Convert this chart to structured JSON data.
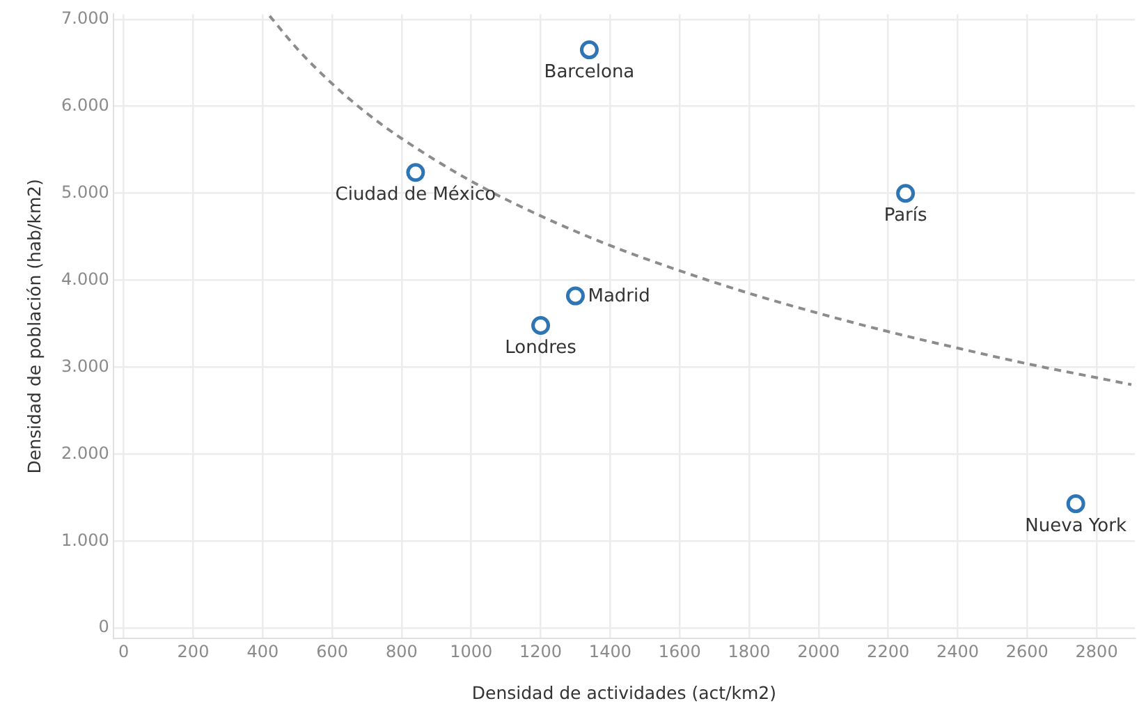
{
  "chart_data": {
    "type": "scatter",
    "xlabel": "Densidad de actividades (act/km2)",
    "ylabel": "Densidad de población (hab/km2)",
    "xlim": [
      -30,
      2910
    ],
    "xticks": [
      0,
      200,
      400,
      600,
      800,
      1000,
      1200,
      1400,
      1600,
      1800,
      2000,
      2200,
      2400,
      2600,
      2800
    ],
    "ylim": [
      -120,
      7060
    ],
    "yticks": [
      {
        "value": 0,
        "label": "0"
      },
      {
        "value": 1000,
        "label": "1.000"
      },
      {
        "value": 2000,
        "label": "2.000"
      },
      {
        "value": 3000,
        "label": "3.000"
      },
      {
        "value": 4000,
        "label": "4.000"
      },
      {
        "value": 5000,
        "label": "5.000"
      },
      {
        "value": 6000,
        "label": "6.000"
      },
      {
        "value": 7000,
        "label": "7.000"
      }
    ],
    "grid": true,
    "legend": false,
    "marker": "circle",
    "series": [
      {
        "name": "Barcelona",
        "color": "#2e75b6",
        "x": [
          1340
        ],
        "values": [
          6650
        ]
      },
      {
        "name": "Ciudad de México",
        "color": "#2e75b6",
        "x": [
          840
        ],
        "values": [
          5240
        ]
      },
      {
        "name": "París",
        "color": "#2e75b6",
        "x": [
          2250
        ],
        "values": [
          5000
        ]
      },
      {
        "name": "Madrid",
        "color": "#2e75b6",
        "x": [
          1300
        ],
        "values": [
          3820
        ]
      },
      {
        "name": "Londres",
        "color": "#2e75b6",
        "x": [
          1200
        ],
        "values": [
          3480
        ]
      },
      {
        "name": "Nueva York",
        "color": "#2e75b6",
        "x": [
          2740
        ],
        "values": [
          1430
        ]
      },
      {
        "type": "line",
        "color": "#8c8c8c",
        "line_style": "dashed",
        "marker": "none",
        "x": [
          420,
          500,
          600,
          700,
          800,
          1000,
          1200,
          1400,
          1600,
          1800,
          2000,
          2200,
          2400,
          2600,
          2800,
          2900
        ],
        "values": [
          7040,
          6660,
          6260,
          5920,
          5630,
          5140,
          4740,
          4400,
          4110,
          3850,
          3620,
          3410,
          3220,
          3040,
          2880,
          2800
        ]
      }
    ]
  }
}
